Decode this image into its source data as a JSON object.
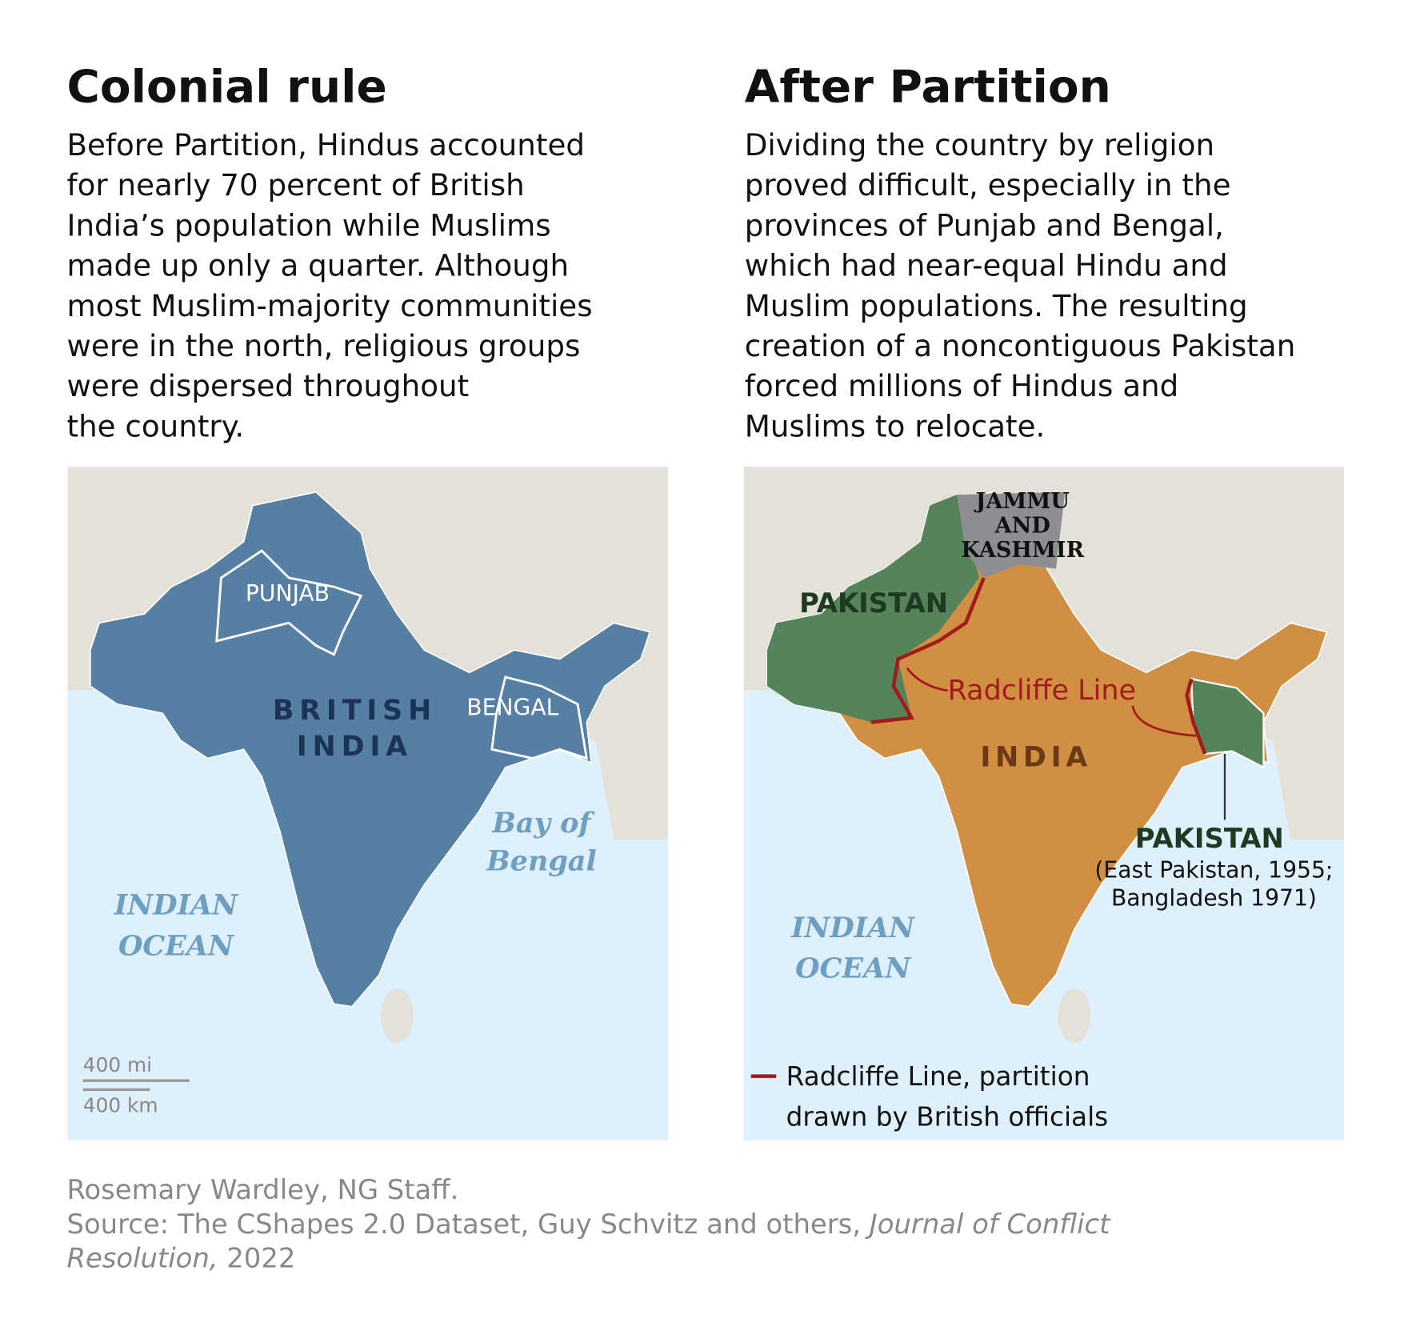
{
  "left": {
    "title": "Colonial rule",
    "text": [
      "Before Partition, Hindus accounted",
      "for nearly 70 percent of British",
      "India’s population while Muslims",
      "made up only a quarter. Although",
      "most Muslim-majority communities",
      "were in the north, religious groups",
      "were dispersed throughout",
      "the country."
    ],
    "map": {
      "country": [
        "BRITISH",
        "INDIA"
      ],
      "punjab": "PUNJAB",
      "bengal": "BENGAL",
      "bay": [
        "Bay of",
        "Bengal"
      ],
      "ocean": [
        "INDIAN",
        "OCEAN"
      ],
      "scale": [
        "400 mi",
        "400 km"
      ]
    }
  },
  "right": {
    "title": "After Partition",
    "text": [
      "Dividing the country by religion",
      "proved difficult, especially in the",
      "provinces of Punjab and Bengal,",
      "which had near-equal Hindu and",
      "Muslim populations. The resulting",
      "creation of a noncontiguous Pakistan",
      "forced millions of Hindus and",
      "Muslims to relocate."
    ],
    "map": {
      "kashmir": [
        "JAMMU",
        "AND",
        "KASHMIR"
      ],
      "pakistan": "PAKISTAN",
      "line": "Radcliffe Line",
      "india": "INDIA",
      "east": [
        "PAKISTAN",
        "(East Pakistan, 1955;",
        "Bangladesh 1971)"
      ],
      "ocean": [
        "INDIAN",
        "OCEAN"
      ],
      "legend": [
        "Radcliffe Line, partition",
        "drawn by British officials"
      ]
    }
  },
  "credit": "Rosemary Wardley, NG Staff.",
  "source": {
    "prefix": "Source: The CShapes 2.0 Dataset, Guy Schvitz and others, ",
    "journal_1": "Journal of Conflict",
    "journal_2": "Resolution,",
    "year": " 2022"
  }
}
